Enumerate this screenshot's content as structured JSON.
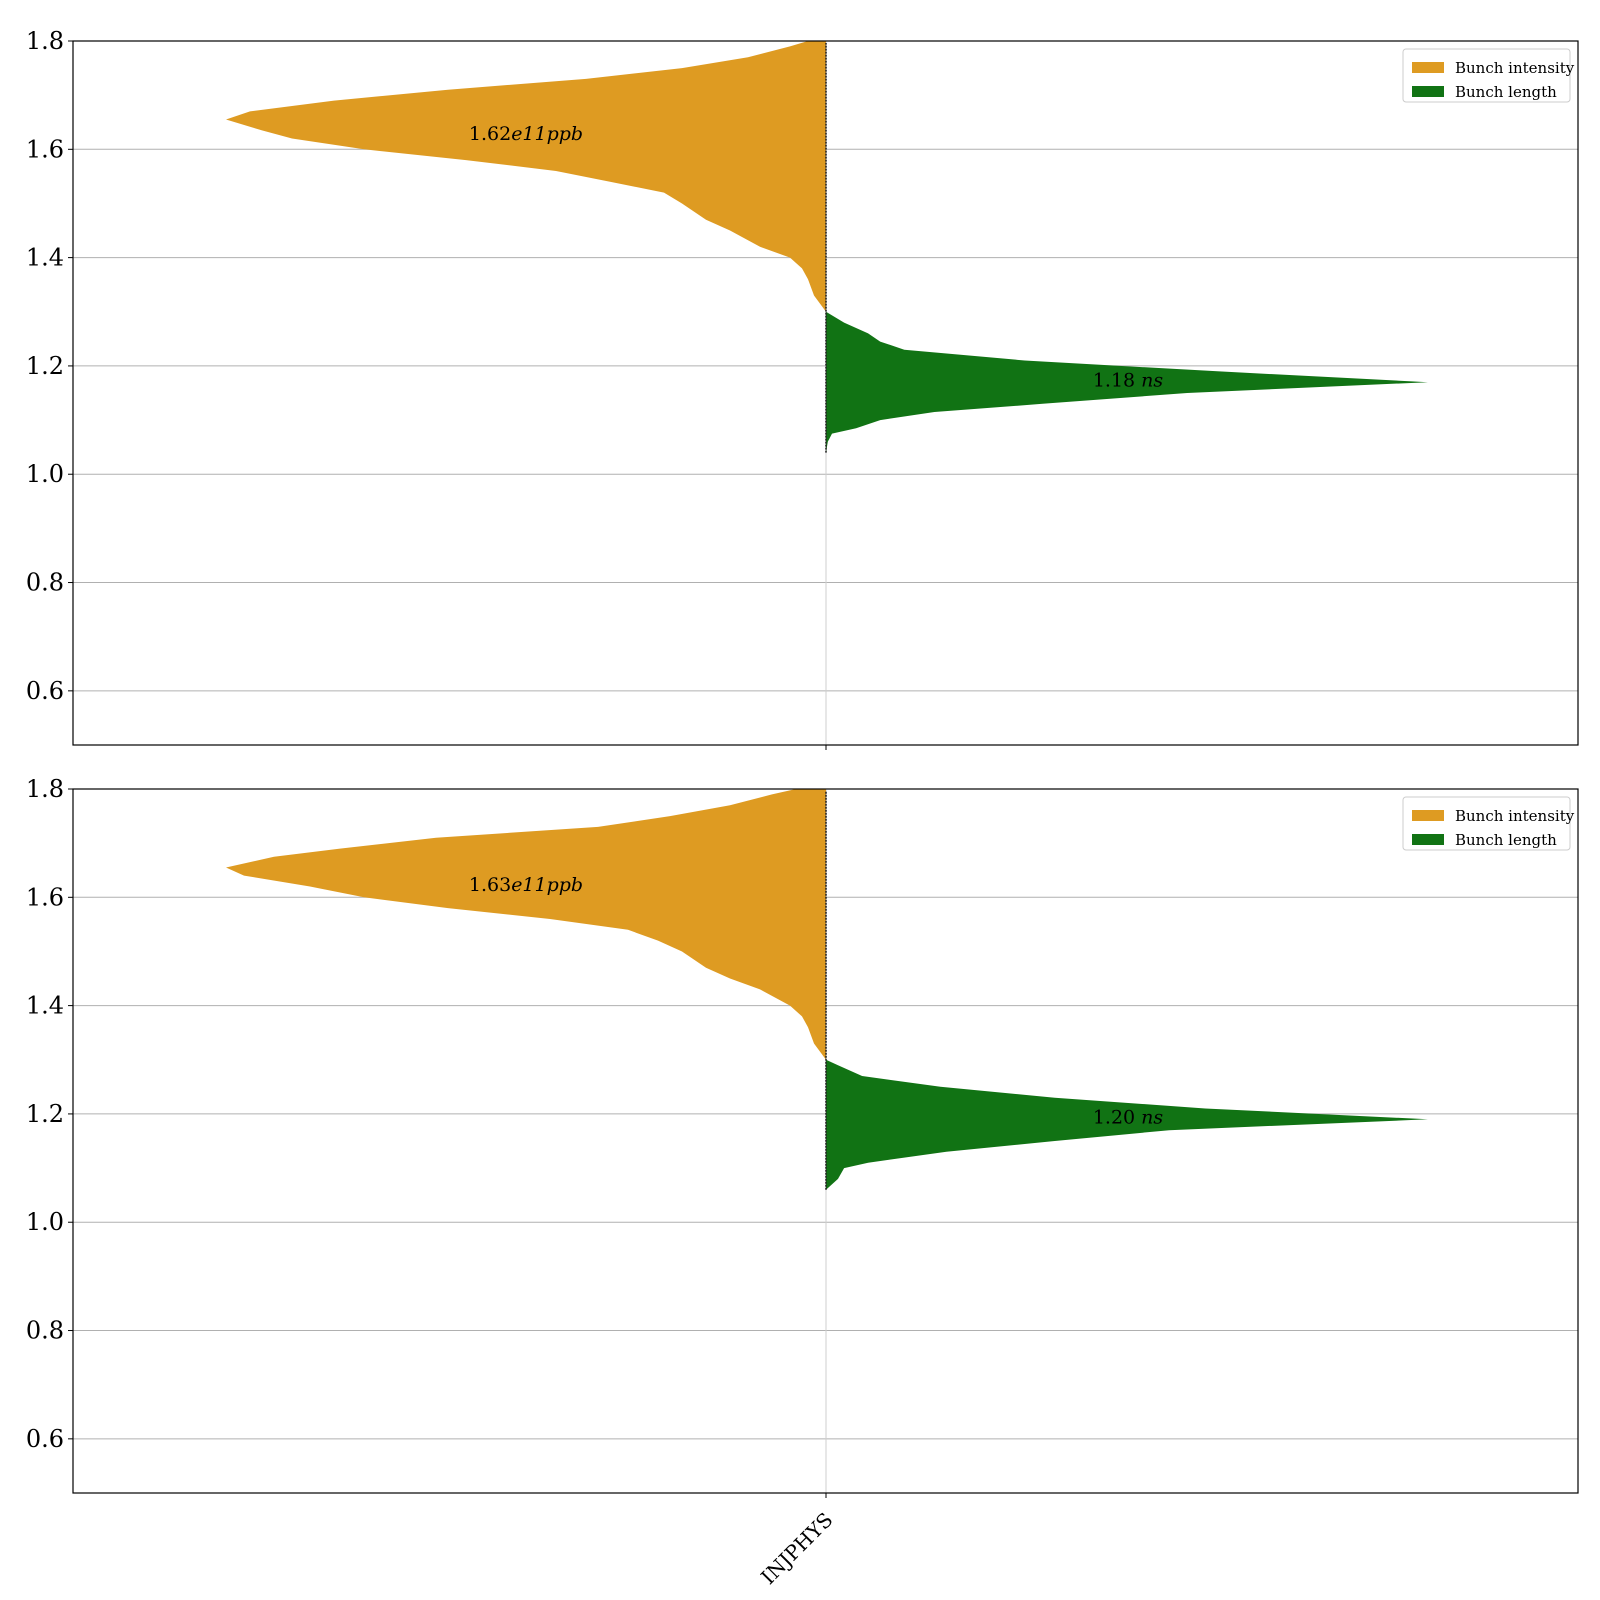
{
  "colors": {
    "bunch_intensity": "#de9b22",
    "bunch_length": "#117314",
    "grid": "#b0b0b0",
    "axis": "#000000"
  },
  "chart_data": [
    {
      "type": "violin",
      "ylim": [
        0.5,
        1.8
      ],
      "yticks": [
        0.6,
        0.8,
        1.0,
        1.2,
        1.4,
        1.6,
        1.8
      ],
      "ytick_labels": [
        "0.6",
        "0.8",
        "1.0",
        "1.2",
        "1.4",
        "1.6",
        "1.8"
      ],
      "categories": [
        "INJPHYS"
      ],
      "grid": "horizontal",
      "legend": {
        "placement": "top-right",
        "entries": [
          {
            "label": "Bunch intensity",
            "series": "intensity"
          },
          {
            "label": "Bunch length",
            "series": "length"
          }
        ]
      },
      "series": [
        {
          "name": "Bunch intensity",
          "key": "intensity",
          "side": "left",
          "annotation": {
            "number": "1.62",
            "unit": "e11ppb",
            "y": 1.63
          },
          "profile": [
            [
              1.3,
              0.0
            ],
            [
              1.33,
              0.02
            ],
            [
              1.36,
              0.03
            ],
            [
              1.38,
              0.04
            ],
            [
              1.4,
              0.06
            ],
            [
              1.42,
              0.11
            ],
            [
              1.45,
              0.16
            ],
            [
              1.47,
              0.2
            ],
            [
              1.5,
              0.24
            ],
            [
              1.52,
              0.27
            ],
            [
              1.54,
              0.36
            ],
            [
              1.56,
              0.45
            ],
            [
              1.58,
              0.6
            ],
            [
              1.6,
              0.77
            ],
            [
              1.62,
              0.89
            ],
            [
              1.635,
              0.94
            ],
            [
              1.655,
              1.0
            ],
            [
              1.67,
              0.96
            ],
            [
              1.69,
              0.82
            ],
            [
              1.71,
              0.63
            ],
            [
              1.73,
              0.4
            ],
            [
              1.75,
              0.24
            ],
            [
              1.77,
              0.13
            ],
            [
              1.79,
              0.06
            ],
            [
              1.8,
              0.03
            ]
          ]
        },
        {
          "name": "Bunch length",
          "key": "length",
          "side": "right",
          "annotation": {
            "number": "1.18",
            "unit": "ns",
            "y": 1.175
          },
          "profile": [
            [
              1.04,
              0.0
            ],
            [
              1.06,
              0.003
            ],
            [
              1.075,
              0.01
            ],
            [
              1.085,
              0.05
            ],
            [
              1.1,
              0.09
            ],
            [
              1.115,
              0.18
            ],
            [
              1.13,
              0.36
            ],
            [
              1.15,
              0.6
            ],
            [
              1.17,
              1.0
            ],
            [
              1.19,
              0.65
            ],
            [
              1.21,
              0.33
            ],
            [
              1.23,
              0.13
            ],
            [
              1.245,
              0.09
            ],
            [
              1.26,
              0.07
            ],
            [
              1.28,
              0.03
            ],
            [
              1.3,
              0.0
            ]
          ]
        }
      ]
    },
    {
      "type": "violin",
      "ylim": [
        0.5,
        1.8
      ],
      "yticks": [
        0.6,
        0.8,
        1.0,
        1.2,
        1.4,
        1.6,
        1.8
      ],
      "ytick_labels": [
        "0.6",
        "0.8",
        "1.0",
        "1.2",
        "1.4",
        "1.6",
        "1.8"
      ],
      "categories": [
        "INJPHYS"
      ],
      "xtick_labels": [
        "INJPHYS"
      ],
      "grid": "horizontal",
      "legend": {
        "placement": "top-right",
        "entries": [
          {
            "label": "Bunch intensity",
            "series": "intensity"
          },
          {
            "label": "Bunch length",
            "series": "length"
          }
        ]
      },
      "series": [
        {
          "name": "Bunch intensity",
          "key": "intensity",
          "side": "left",
          "annotation": {
            "number": "1.63",
            "unit": "e11ppb",
            "y": 1.625
          },
          "profile": [
            [
              1.3,
              0.0
            ],
            [
              1.33,
              0.02
            ],
            [
              1.36,
              0.03
            ],
            [
              1.38,
              0.04
            ],
            [
              1.4,
              0.06
            ],
            [
              1.43,
              0.11
            ],
            [
              1.45,
              0.16
            ],
            [
              1.47,
              0.2
            ],
            [
              1.5,
              0.24
            ],
            [
              1.52,
              0.28
            ],
            [
              1.54,
              0.33
            ],
            [
              1.56,
              0.46
            ],
            [
              1.58,
              0.63
            ],
            [
              1.6,
              0.77
            ],
            [
              1.62,
              0.86
            ],
            [
              1.64,
              0.97
            ],
            [
              1.655,
              1.0
            ],
            [
              1.675,
              0.92
            ],
            [
              1.69,
              0.81
            ],
            [
              1.71,
              0.65
            ],
            [
              1.73,
              0.38
            ],
            [
              1.75,
              0.26
            ],
            [
              1.77,
              0.16
            ],
            [
              1.79,
              0.09
            ],
            [
              1.8,
              0.05
            ]
          ]
        },
        {
          "name": "Bunch length",
          "key": "length",
          "side": "right",
          "annotation": {
            "number": "1.20",
            "unit": "ns",
            "y": 1.195
          },
          "profile": [
            [
              1.06,
              0.0
            ],
            [
              1.08,
              0.02
            ],
            [
              1.1,
              0.03
            ],
            [
              1.11,
              0.07
            ],
            [
              1.13,
              0.2
            ],
            [
              1.15,
              0.38
            ],
            [
              1.17,
              0.57
            ],
            [
              1.19,
              1.0
            ],
            [
              1.21,
              0.63
            ],
            [
              1.23,
              0.38
            ],
            [
              1.25,
              0.19
            ],
            [
              1.27,
              0.06
            ],
            [
              1.29,
              0.02
            ],
            [
              1.3,
              0.0
            ]
          ]
        }
      ]
    }
  ]
}
